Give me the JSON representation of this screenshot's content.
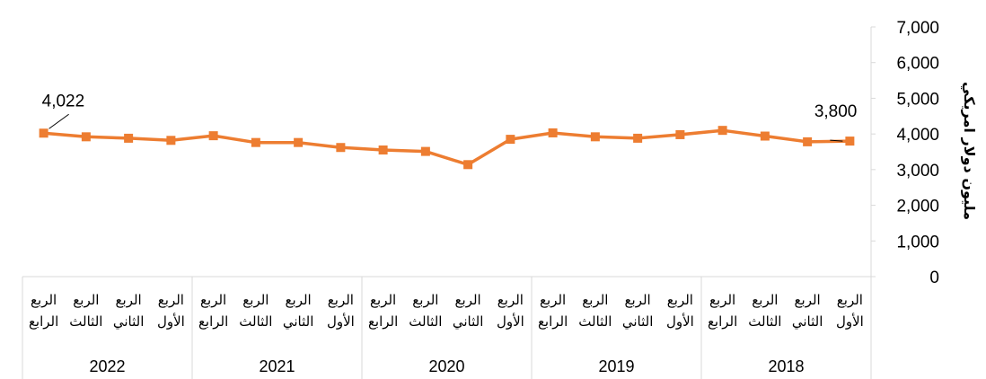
{
  "chart_data": {
    "type": "line",
    "title": "",
    "ylabel": "مليون دولار امريكي",
    "xlabel": "",
    "ylim": [
      0,
      7000
    ],
    "yticks": [
      "0",
      "1,000",
      "2,000",
      "3,000",
      "4,000",
      "5,000",
      "6,000",
      "7,000"
    ],
    "y_axis_position": "right",
    "x_direction": "right-to-left",
    "grid": false,
    "legend": "none",
    "years": [
      "2018",
      "2019",
      "2020",
      "2021",
      "2022"
    ],
    "quarters": [
      "الربع الأول",
      "الربع الثاني",
      "الربع الثالث",
      "الربع الرابع"
    ],
    "series": [
      {
        "color": "#ED7D31",
        "values": [
          3800,
          3780,
          3940,
          4100,
          3980,
          3880,
          3920,
          4030,
          3850,
          3140,
          3510,
          3550,
          3620,
          3760,
          3760,
          3950,
          3820,
          3880,
          3920,
          4022
        ]
      }
    ],
    "annotations": [
      {
        "index": 0,
        "text": "3,800"
      },
      {
        "index": 19,
        "text": "4,022"
      }
    ]
  }
}
